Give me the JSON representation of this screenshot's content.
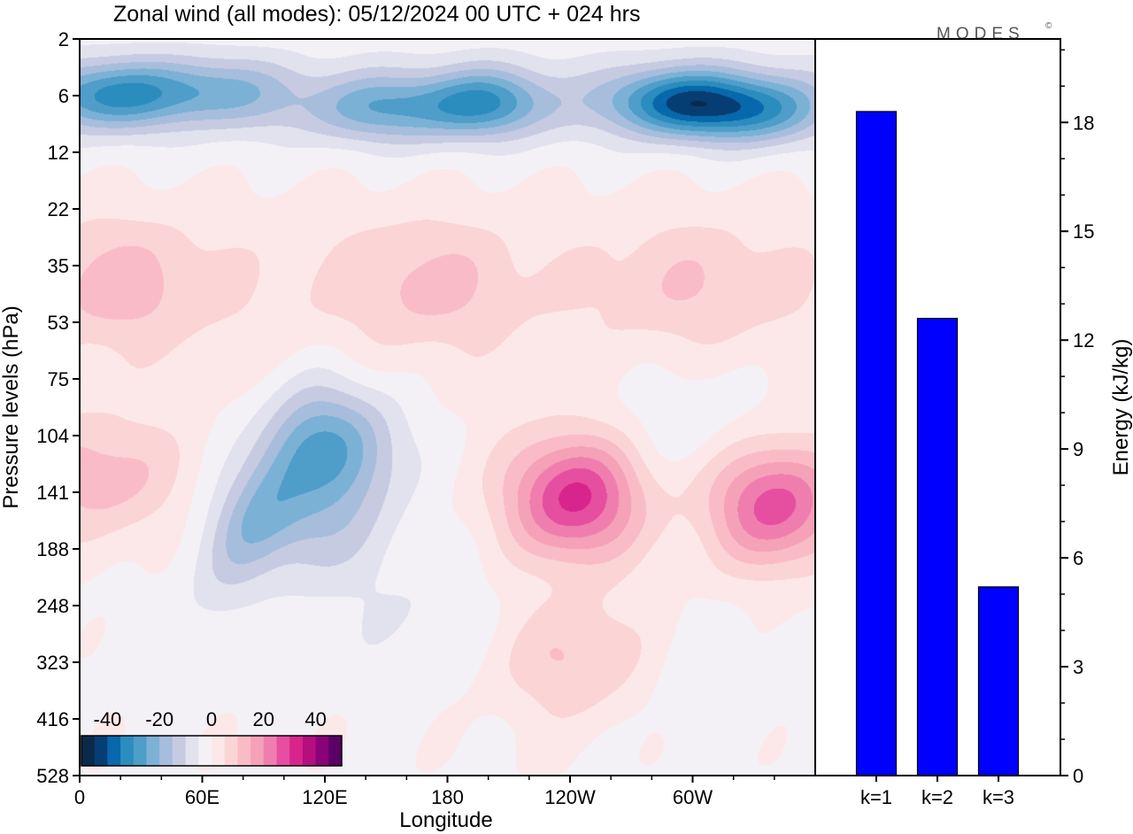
{
  "brand": "MODES",
  "brand_mark": "©",
  "chart_data": [
    {
      "type": "heatmap",
      "title": "Zonal wind (all modes):  05/12/2024  00 UTC  + 024 hrs",
      "xlabel": "Longitude",
      "ylabel": "Pressure levels (hPa)",
      "x_ticks": [
        "0",
        "60E",
        "120E",
        "180",
        "120W",
        "60W"
      ],
      "x_tick_lon": [
        0,
        60,
        120,
        180,
        240,
        300
      ],
      "xlim": [
        0,
        360
      ],
      "y_ticks": [
        "2",
        "6",
        "12",
        "22",
        "35",
        "53",
        "75",
        "104",
        "141",
        "188",
        "248",
        "323",
        "416",
        "528"
      ],
      "colorbar": {
        "ticks": [
          "-40",
          "-20",
          "0",
          "20",
          "40"
        ],
        "tick_values": [
          -40,
          -20,
          0,
          20,
          40
        ],
        "range": [
          -50,
          50
        ],
        "colors": [
          "#0b2a4a",
          "#063d73",
          "#0868ac",
          "#2b8cbe",
          "#4f9dc9",
          "#7cb1d6",
          "#a7bddc",
          "#c6cbe2",
          "#e2e2ee",
          "#f4f1f6",
          "#fce8e8",
          "#fbd4d6",
          "#f9bcc6",
          "#f5a1b8",
          "#ef7eae",
          "#e64e9f",
          "#d7258d",
          "#b50e7f",
          "#8a0277",
          "#5a0066"
        ]
      },
      "features": [
        {
          "lon": 10,
          "p": 6,
          "u": -22
        },
        {
          "lon": 60,
          "p": 5.5,
          "u": -18
        },
        {
          "lon": 150,
          "p": 7,
          "u": -18
        },
        {
          "lon": 200,
          "p": 6.5,
          "u": -22
        },
        {
          "lon": 290,
          "p": 6.5,
          "u": -30
        },
        {
          "lon": 330,
          "p": 7,
          "u": -26
        },
        {
          "lon": 20,
          "p": 40,
          "u": 9
        },
        {
          "lon": 170,
          "p": 40,
          "u": 8
        },
        {
          "lon": 300,
          "p": 40,
          "u": 6
        },
        {
          "lon": 10,
          "p": 130,
          "u": 13
        },
        {
          "lon": 125,
          "p": 110,
          "u": -22
        },
        {
          "lon": 105,
          "p": 165,
          "u": -14
        },
        {
          "lon": 242,
          "p": 145,
          "u": 32
        },
        {
          "lon": 340,
          "p": 150,
          "u": 28
        },
        {
          "lon": 245,
          "p": 320,
          "u": 13
        },
        {
          "lon": 300,
          "p": 95,
          "u": -5
        },
        {
          "lon": 165,
          "p": 260,
          "u": -4
        },
        {
          "lon": 290,
          "p": 350,
          "u": -4
        }
      ]
    },
    {
      "type": "bar",
      "categories": [
        "k=1",
        "k=2",
        "k=3"
      ],
      "values": [
        18.3,
        12.6,
        5.2
      ],
      "ylabel": "Energy (kJ/kg)",
      "y_ticks": [
        0,
        3,
        6,
        9,
        12,
        15,
        18
      ],
      "ylim": [
        0,
        20.3
      ],
      "bar_color": "#0000ff"
    }
  ]
}
